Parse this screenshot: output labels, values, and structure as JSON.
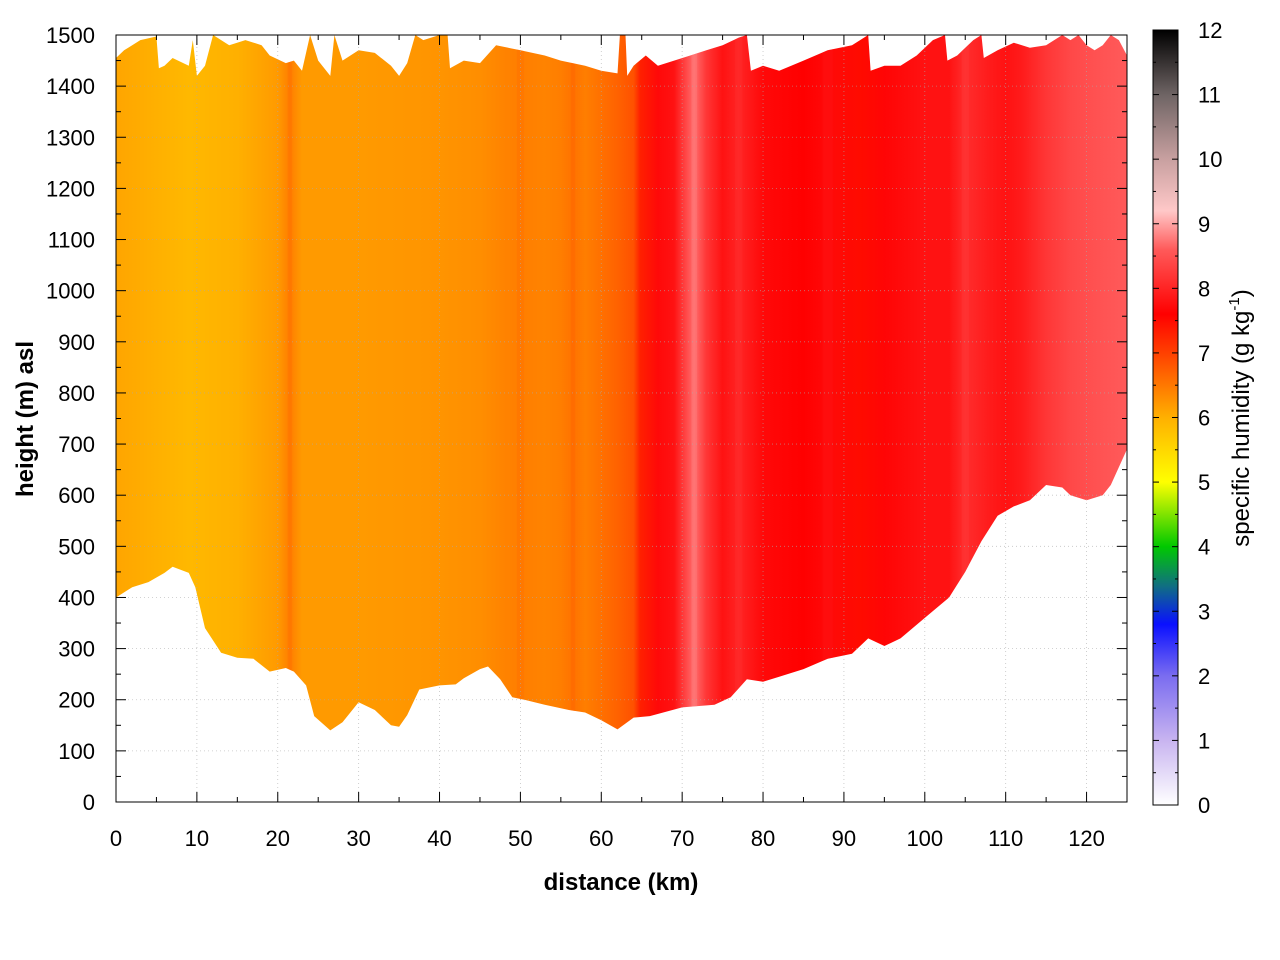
{
  "chart_data": {
    "type": "heatmap",
    "description_kind": "vertical cross-section, filled contour",
    "xlabel": "distance (km)",
    "ylabel": "height (m) asl",
    "xlim": [
      0,
      125
    ],
    "ylim": [
      0,
      1500
    ],
    "x_ticks": [
      "0",
      "10",
      "20",
      "30",
      "40",
      "50",
      "60",
      "70",
      "80",
      "90",
      "100",
      "110",
      "120"
    ],
    "y_ticks": [
      "0",
      "100",
      "200",
      "300",
      "400",
      "500",
      "600",
      "700",
      "800",
      "900",
      "1000",
      "1100",
      "1200",
      "1300",
      "1400",
      "1500"
    ],
    "grid": true,
    "colorbar": {
      "label_main": "specific humidity (g kg",
      "label_sup": "-1",
      "label_end": ")",
      "range": [
        0,
        12
      ],
      "ticks": [
        "0",
        "1",
        "2",
        "3",
        "4",
        "5",
        "6",
        "7",
        "8",
        "9",
        "10",
        "11",
        "12"
      ],
      "stops": [
        {
          "v": 0,
          "c": "#ffffff"
        },
        {
          "v": 1,
          "c": "#c8b4f0"
        },
        {
          "v": 2,
          "c": "#7a6cf0"
        },
        {
          "v": 2.8,
          "c": "#0a10ff"
        },
        {
          "v": 3.4,
          "c": "#107080"
        },
        {
          "v": 4.0,
          "c": "#00c800"
        },
        {
          "v": 5.0,
          "c": "#ffff00"
        },
        {
          "v": 6.0,
          "c": "#ffb000"
        },
        {
          "v": 7.0,
          "c": "#ff4000"
        },
        {
          "v": 7.6,
          "c": "#ff0000"
        },
        {
          "v": 8.6,
          "c": "#ff5a5a"
        },
        {
          "v": 9.2,
          "c": "#ffc8c8"
        },
        {
          "v": 10.0,
          "c": "#c8a0a0"
        },
        {
          "v": 11.0,
          "c": "#6e6464"
        },
        {
          "v": 12.0,
          "c": "#000000"
        }
      ]
    },
    "field": {
      "columns": [
        {
          "x": 0,
          "q": 6.1
        },
        {
          "x": 5,
          "q": 6.0
        },
        {
          "x": 9,
          "q": 5.9
        },
        {
          "x": 15,
          "q": 6.0
        },
        {
          "x": 20,
          "q": 6.2
        },
        {
          "x": 21.5,
          "q": 6.45
        },
        {
          "x": 23,
          "q": 6.2
        },
        {
          "x": 30,
          "q": 6.2
        },
        {
          "x": 40,
          "q": 6.25
        },
        {
          "x": 45,
          "q": 6.3
        },
        {
          "x": 48,
          "q": 6.4
        },
        {
          "x": 50,
          "q": 6.45
        },
        {
          "x": 53,
          "q": 6.4
        },
        {
          "x": 55,
          "q": 6.45
        },
        {
          "x": 56.5,
          "q": 6.55
        },
        {
          "x": 58,
          "q": 6.45
        },
        {
          "x": 62,
          "q": 6.7
        },
        {
          "x": 64,
          "q": 6.85
        },
        {
          "x": 64.8,
          "q": 7.3
        },
        {
          "x": 67,
          "q": 7.7
        },
        {
          "x": 69,
          "q": 7.8
        },
        {
          "x": 71.5,
          "q": 8.7
        },
        {
          "x": 73,
          "q": 8.2
        },
        {
          "x": 75,
          "q": 7.8
        },
        {
          "x": 77,
          "q": 8.0
        },
        {
          "x": 80,
          "q": 7.7
        },
        {
          "x": 85,
          "q": 7.6
        },
        {
          "x": 88,
          "q": 7.7
        },
        {
          "x": 92,
          "q": 7.5
        },
        {
          "x": 95,
          "q": 7.65
        },
        {
          "x": 100,
          "q": 7.8
        },
        {
          "x": 103,
          "q": 7.8
        },
        {
          "x": 105,
          "q": 8.1
        },
        {
          "x": 108,
          "q": 7.9
        },
        {
          "x": 110,
          "q": 7.8
        },
        {
          "x": 112,
          "q": 7.9
        },
        {
          "x": 115,
          "q": 8.2
        },
        {
          "x": 118,
          "q": 8.4
        },
        {
          "x": 121,
          "q": 8.5
        },
        {
          "x": 125,
          "q": 8.6
        }
      ],
      "bottom_boundary": [
        [
          0,
          400
        ],
        [
          2,
          420
        ],
        [
          4,
          430
        ],
        [
          6,
          448
        ],
        [
          7,
          460
        ],
        [
          9,
          448
        ],
        [
          9.8,
          420
        ],
        [
          11,
          340
        ],
        [
          13,
          292
        ],
        [
          15,
          282
        ],
        [
          17,
          280
        ],
        [
          19,
          255
        ],
        [
          21,
          262
        ],
        [
          22,
          255
        ],
        [
          23.5,
          228
        ],
        [
          24.5,
          168
        ],
        [
          26.5,
          140
        ],
        [
          28,
          156
        ],
        [
          30,
          195
        ],
        [
          32,
          180
        ],
        [
          34,
          150
        ],
        [
          35,
          147
        ],
        [
          36,
          170
        ],
        [
          37.5,
          220
        ],
        [
          40,
          228
        ],
        [
          42,
          230
        ],
        [
          43,
          242
        ],
        [
          45,
          260
        ],
        [
          46,
          265
        ],
        [
          47.5,
          240
        ],
        [
          49,
          205
        ],
        [
          50.5,
          200
        ],
        [
          53,
          190
        ],
        [
          56,
          180
        ],
        [
          58,
          175
        ],
        [
          60,
          160
        ],
        [
          62,
          142
        ],
        [
          64,
          165
        ],
        [
          66,
          168
        ],
        [
          70,
          185
        ],
        [
          74,
          190
        ],
        [
          76,
          205
        ],
        [
          78,
          240
        ],
        [
          80,
          235
        ],
        [
          82,
          245
        ],
        [
          85,
          260
        ],
        [
          88,
          280
        ],
        [
          91,
          290
        ],
        [
          93,
          320
        ],
        [
          95,
          305
        ],
        [
          97,
          320
        ],
        [
          100,
          360
        ],
        [
          103,
          400
        ],
        [
          105,
          450
        ],
        [
          107,
          510
        ],
        [
          109,
          560
        ],
        [
          111,
          578
        ],
        [
          113,
          590
        ],
        [
          115,
          620
        ],
        [
          117,
          615
        ],
        [
          118,
          600
        ],
        [
          120,
          590
        ],
        [
          122,
          600
        ],
        [
          123,
          620
        ],
        [
          125,
          690
        ]
      ],
      "top_boundary": [
        [
          0,
          1455
        ],
        [
          1,
          1470
        ],
        [
          2,
          1480
        ],
        [
          3,
          1490
        ],
        [
          5,
          1497
        ],
        [
          5.3,
          1435
        ],
        [
          6,
          1440
        ],
        [
          7,
          1455
        ],
        [
          9,
          1440
        ],
        [
          9.5,
          1490
        ],
        [
          10,
          1420
        ],
        [
          11,
          1440
        ],
        [
          12,
          1500
        ],
        [
          14,
          1480
        ],
        [
          16,
          1490
        ],
        [
          18,
          1480
        ],
        [
          19,
          1460
        ],
        [
          21,
          1445
        ],
        [
          22,
          1450
        ],
        [
          23,
          1430
        ],
        [
          24,
          1500
        ],
        [
          25,
          1450
        ],
        [
          26.5,
          1420
        ],
        [
          27,
          1500
        ],
        [
          28,
          1450
        ],
        [
          30,
          1470
        ],
        [
          32,
          1465
        ],
        [
          34,
          1440
        ],
        [
          35,
          1420
        ],
        [
          36,
          1445
        ],
        [
          37,
          1500
        ],
        [
          38,
          1490
        ],
        [
          40,
          1500
        ],
        [
          41,
          1500
        ],
        [
          41.3,
          1435
        ],
        [
          43,
          1450
        ],
        [
          45,
          1445
        ],
        [
          47,
          1480
        ],
        [
          50,
          1470
        ],
        [
          53,
          1460
        ],
        [
          55,
          1450
        ],
        [
          58,
          1440
        ],
        [
          60,
          1430
        ],
        [
          62,
          1425
        ],
        [
          62.3,
          1500
        ],
        [
          63,
          1500
        ],
        [
          63.2,
          1420
        ],
        [
          64,
          1440
        ],
        [
          65.5,
          1460
        ],
        [
          67,
          1440
        ],
        [
          69,
          1450
        ],
        [
          71,
          1460
        ],
        [
          73,
          1470
        ],
        [
          75,
          1480
        ],
        [
          77,
          1495
        ],
        [
          78,
          1500
        ],
        [
          78.5,
          1430
        ],
        [
          80,
          1440
        ],
        [
          82,
          1430
        ],
        [
          85,
          1450
        ],
        [
          88,
          1470
        ],
        [
          91,
          1480
        ],
        [
          93,
          1500
        ],
        [
          93.3,
          1430
        ],
        [
          95,
          1440
        ],
        [
          97,
          1440
        ],
        [
          99,
          1460
        ],
        [
          101,
          1490
        ],
        [
          102.5,
          1500
        ],
        [
          102.8,
          1450
        ],
        [
          104,
          1460
        ],
        [
          106,
          1490
        ],
        [
          107,
          1500
        ],
        [
          107.3,
          1455
        ],
        [
          109,
          1470
        ],
        [
          111,
          1485
        ],
        [
          113,
          1475
        ],
        [
          115,
          1480
        ],
        [
          117,
          1500
        ],
        [
          118,
          1490
        ],
        [
          119,
          1500
        ],
        [
          120,
          1480
        ],
        [
          121,
          1470
        ],
        [
          122,
          1480
        ],
        [
          123,
          1500
        ],
        [
          124,
          1490
        ],
        [
          125,
          1460
        ]
      ]
    }
  }
}
